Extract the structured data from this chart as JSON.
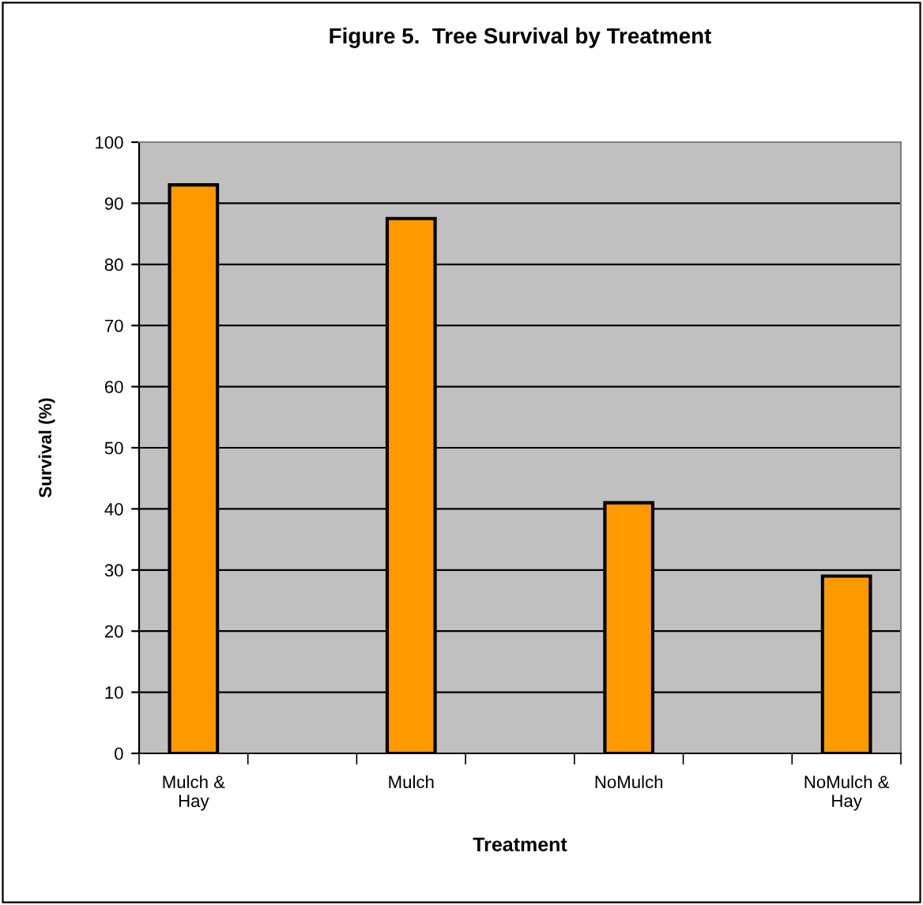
{
  "chart_data": {
    "type": "bar",
    "title": "Figure 5.  Tree Survival by Treatment",
    "xlabel": "Treatment",
    "ylabel": "Survival (%)",
    "categories": [
      "Mulch &\nHay",
      "Mulch",
      "NoMulch",
      "NoMulch &\nHay"
    ],
    "values": [
      93,
      87.5,
      41,
      29
    ],
    "color": "#ff9900",
    "ylim": [
      0,
      100
    ],
    "yticks": [
      0,
      10,
      20,
      30,
      40,
      50,
      60,
      70,
      80,
      90,
      100
    ],
    "grid": "y",
    "legend": false
  }
}
